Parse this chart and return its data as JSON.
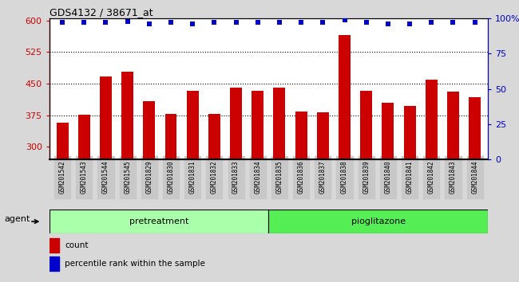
{
  "title": "GDS4132 / 38671_at",
  "categories": [
    "GSM201542",
    "GSM201543",
    "GSM201544",
    "GSM201545",
    "GSM201829",
    "GSM201830",
    "GSM201831",
    "GSM201832",
    "GSM201833",
    "GSM201834",
    "GSM201835",
    "GSM201836",
    "GSM201837",
    "GSM201838",
    "GSM201839",
    "GSM201840",
    "GSM201841",
    "GSM201842",
    "GSM201843",
    "GSM201844"
  ],
  "bar_values": [
    358,
    376,
    466,
    478,
    408,
    378,
    432,
    378,
    440,
    432,
    440,
    383,
    382,
    565,
    432,
    405,
    397,
    460,
    430,
    418
  ],
  "percentile_values": [
    97,
    97,
    97,
    98,
    96,
    97,
    96,
    97,
    97,
    97,
    97,
    97,
    97,
    99,
    97,
    96,
    96,
    97,
    97,
    97
  ],
  "bar_color": "#cc0000",
  "dot_color": "#0000cc",
  "ylim_left": [
    270,
    605
  ],
  "ylim_right": [
    0,
    100
  ],
  "yticks_left": [
    300,
    375,
    450,
    525,
    600
  ],
  "yticks_right": [
    0,
    25,
    50,
    75,
    100
  ],
  "yticklabels_right": [
    "0",
    "25",
    "50",
    "75",
    "100%"
  ],
  "grid_lines": [
    375,
    450,
    525
  ],
  "pre_n": 10,
  "pio_n": 10,
  "agent_label": "agent",
  "pretreatment_label": "pretreatment",
  "pioglitazone_label": "pioglitazone",
  "legend_count_label": "count",
  "legend_percentile_label": "percentile rank within the sample",
  "background_color": "#d8d8d8",
  "pretreatment_color": "#aaffaa",
  "pioglitazone_color": "#55ee55",
  "plot_bg_color": "#ffffff",
  "left_axis_color": "#cc0000",
  "right_axis_color": "#0000cc",
  "xticklabel_bg": "#c8c8c8"
}
